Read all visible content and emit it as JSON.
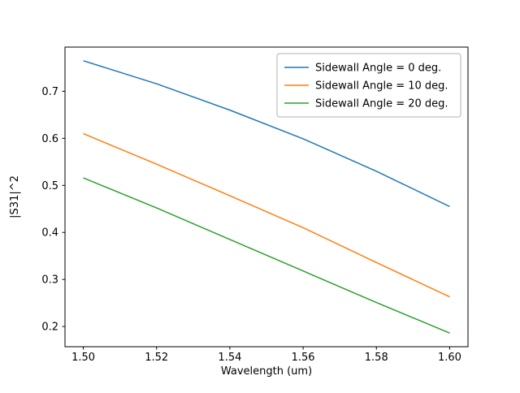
{
  "chart_data": {
    "type": "line",
    "title": "",
    "xlabel": "Wavelength (um)",
    "ylabel": "|S31|^2",
    "x": [
      1.5,
      1.52,
      1.54,
      1.56,
      1.58,
      1.6
    ],
    "series": [
      {
        "name": "Sidewall Angle = 0 deg.",
        "color": "#1f77b4",
        "values": [
          0.765,
          0.716,
          0.66,
          0.599,
          0.53,
          0.455
        ]
      },
      {
        "name": "Sidewall Angle = 10 deg.",
        "color": "#ff7f0e",
        "values": [
          0.61,
          0.545,
          0.478,
          0.41,
          0.336,
          0.263
        ]
      },
      {
        "name": "Sidewall Angle = 20 deg.",
        "color": "#2ca02c",
        "values": [
          0.516,
          0.452,
          0.385,
          0.318,
          0.251,
          0.186
        ]
      }
    ],
    "xticks": [
      1.5,
      1.52,
      1.54,
      1.56,
      1.58,
      1.6
    ],
    "xtick_labels": [
      "1.50",
      "1.52",
      "1.54",
      "1.56",
      "1.58",
      "1.60"
    ],
    "yticks": [
      0.2,
      0.3,
      0.4,
      0.5,
      0.6,
      0.7
    ],
    "ytick_labels": [
      "0.2",
      "0.3",
      "0.4",
      "0.5",
      "0.6",
      "0.7"
    ],
    "xlim": [
      1.495,
      1.605
    ],
    "ylim": [
      0.157,
      0.794
    ],
    "legend": {
      "position": "upper right"
    },
    "grid": false,
    "line_width": 1.5,
    "axis_color": "#000000",
    "legend_border_color": "#b0b0b0",
    "background_color": "#ffffff"
  }
}
